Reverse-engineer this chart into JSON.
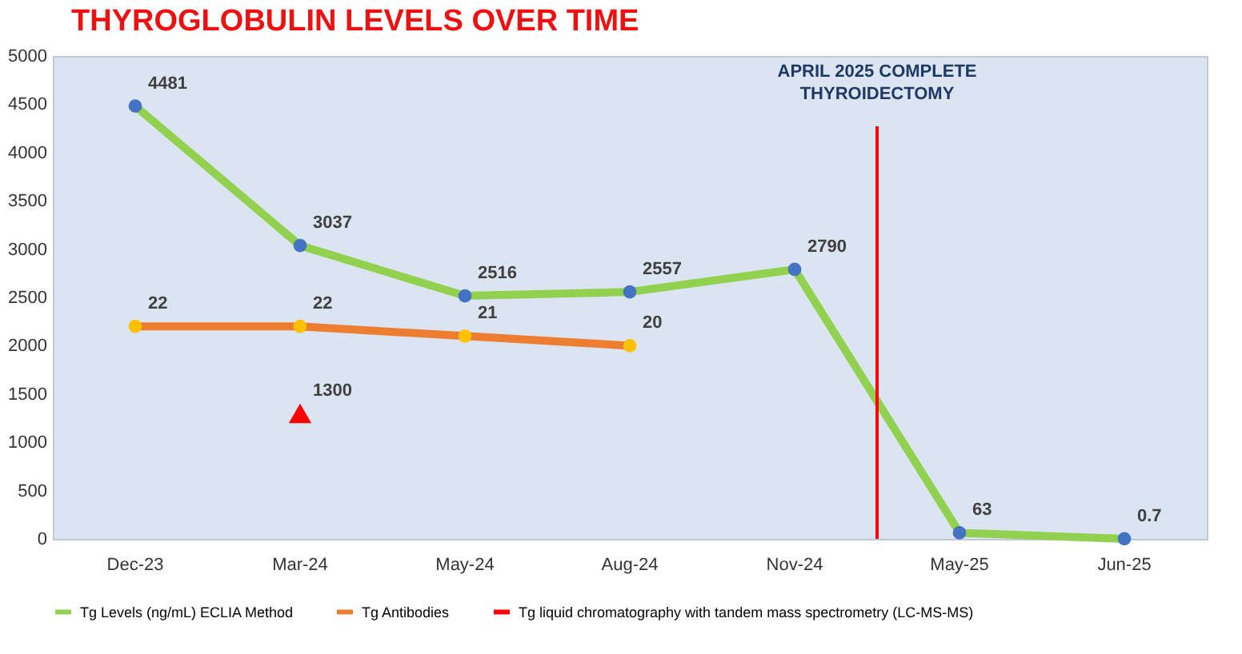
{
  "chart_data": {
    "type": "line",
    "title": "THYROGLOBULIN LEVELS OVER TIME",
    "categories": [
      "Dec-23",
      "Mar-24",
      "May-24",
      "Aug-24",
      "Nov-24",
      "May-25",
      "Jun-25"
    ],
    "series": [
      {
        "name": "Tg Levels (ng/mL) ECLIA Method",
        "marker": "circle",
        "line_style": "solid",
        "color": "#92d050",
        "values": [
          4481,
          3037,
          2516,
          2557,
          2790,
          63,
          0.7
        ]
      },
      {
        "name": "Tg Antibodies",
        "marker": "circle",
        "line_style": "solid",
        "axis": "y2",
        "color": "#ed7d31",
        "values": [
          22,
          22,
          21,
          20,
          null,
          null,
          null
        ]
      },
      {
        "name": "Tg liquid chromatography with tandem mass spectrometry (LC-MS-MS)",
        "type": "scatter",
        "marker": "triangle",
        "color": "#ff0000",
        "values": [
          null,
          1300,
          null,
          null,
          null,
          null,
          null
        ]
      }
    ],
    "ylim": [
      0,
      5000
    ],
    "yticks": [
      0,
      500,
      1000,
      1500,
      2000,
      2500,
      3000,
      3500,
      4000,
      4500,
      5000
    ],
    "y2lim": [
      0,
      50
    ],
    "ref_lines": [
      {
        "axis": "x",
        "value": "May-25",
        "label": "APRIL 2025 COMPLETE THYROIDECTOMY",
        "color": "#ff0000"
      }
    ],
    "data_labels": true,
    "grid": false,
    "legend": "bottom"
  }
}
